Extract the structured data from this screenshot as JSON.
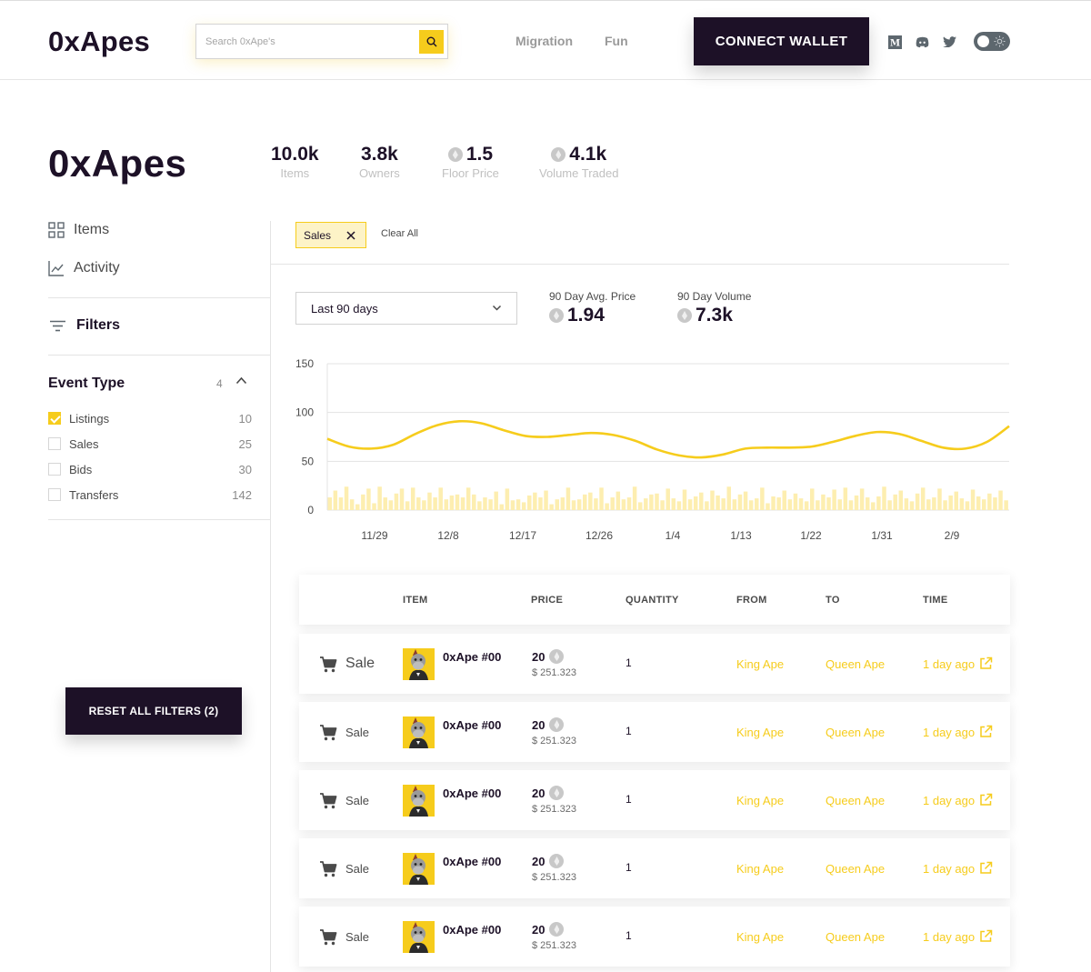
{
  "header": {
    "logo": "0xApes",
    "search_placeholder": "Search 0xApe's",
    "nav": [
      "Migration",
      "Fun"
    ],
    "connect_label": "CONNECT WALLET",
    "socials": [
      "medium-icon",
      "discord-icon",
      "twitter-icon"
    ]
  },
  "collection": {
    "title": "0xApes",
    "stats": [
      {
        "value": "10.0k",
        "label": "Items"
      },
      {
        "value": "3.8k",
        "label": "Owners"
      },
      {
        "value": "1.5",
        "label": "Floor Price"
      },
      {
        "value": "4.1k",
        "label": "Volume Traded"
      }
    ]
  },
  "sidebar": {
    "items": [
      {
        "label": "Items"
      },
      {
        "label": "Activity"
      }
    ],
    "filters_label": "Filters",
    "event_type": {
      "title": "Event Type",
      "count": "4",
      "options": [
        {
          "label": "Listings",
          "count": "10",
          "checked": true
        },
        {
          "label": "Sales",
          "count": "25",
          "checked": false
        },
        {
          "label": "Bids",
          "count": "30",
          "checked": false
        },
        {
          "label": "Transfers",
          "count": "142",
          "checked": false
        }
      ]
    },
    "reset_label": "RESET ALL FILTERS (2)"
  },
  "main": {
    "active_chip": "Sales",
    "clear_all": "Clear All",
    "range": "Last 90 days",
    "kpis": [
      {
        "label": "90 Day Avg. Price",
        "value": "1.94"
      },
      {
        "label": "90 Day Volume",
        "value": "7.3k"
      }
    ]
  },
  "chart_data": {
    "type": "line",
    "x_ticks": [
      "11/29",
      "12/8",
      "12/17",
      "12/26",
      "1/4",
      "1/13",
      "1/22",
      "1/31",
      "2/9"
    ],
    "ylim": [
      0,
      150
    ],
    "y_ticks": [
      "150",
      "100",
      "50",
      "0"
    ],
    "grid": true,
    "series": [
      {
        "type": "line",
        "color": "#f6cc1c",
        "values": [
          73,
          65,
          63,
          67,
          78,
          87,
          91,
          89,
          82,
          76,
          75,
          77,
          79,
          77,
          71,
          62,
          56,
          54,
          57,
          63,
          64,
          64,
          65,
          70,
          76,
          80,
          78,
          71,
          64,
          63,
          70,
          86
        ]
      },
      {
        "type": "bar",
        "color": "#fdeeb0",
        "values": [
          13,
          20,
          13,
          24,
          11,
          6,
          16,
          22,
          7,
          24,
          13,
          10,
          17,
          22,
          9,
          23,
          13,
          10,
          18,
          13,
          23,
          11,
          15,
          16,
          13,
          23,
          16,
          9,
          13,
          11,
          19,
          6,
          22,
          10,
          11,
          8,
          15,
          18,
          13,
          20,
          6,
          11,
          13,
          23,
          10,
          11,
          16,
          18,
          12,
          23,
          7,
          13,
          19,
          11,
          13,
          24,
          8,
          12,
          16,
          17,
          10,
          22,
          12,
          9,
          21,
          11,
          14,
          18,
          9,
          20,
          15,
          12,
          24,
          11,
          16,
          19,
          10,
          12,
          23,
          7,
          14,
          13,
          20,
          11,
          17,
          12,
          9,
          22,
          10,
          16,
          13,
          21,
          11,
          23,
          10,
          15,
          22,
          13,
          8,
          14,
          24,
          10,
          16,
          20,
          12,
          9,
          17,
          23,
          11,
          13,
          22,
          10,
          15,
          19,
          12,
          9,
          21,
          14,
          11,
          17,
          13,
          20,
          10
        ]
      }
    ]
  },
  "table": {
    "headers": [
      "ITEM",
      "PRICE",
      "QUANTITY",
      "FROM",
      "TO",
      "TIME"
    ],
    "rows": [
      {
        "event": "Sale",
        "item": "0xApe #00",
        "price": "20",
        "usd": "$ 251.323",
        "qty": "1",
        "from": "King Ape",
        "to": "Queen Ape",
        "time": "1 day ago"
      },
      {
        "event": "Sale",
        "item": "0xApe #00",
        "price": "20",
        "usd": "$ 251.323",
        "qty": "1",
        "from": "King Ape",
        "to": "Queen Ape",
        "time": "1 day ago"
      },
      {
        "event": "Sale",
        "item": "0xApe #00",
        "price": "20",
        "usd": "$ 251.323",
        "qty": "1",
        "from": "King Ape",
        "to": "Queen Ape",
        "time": "1 day ago"
      },
      {
        "event": "Sale",
        "item": "0xApe #00",
        "price": "20",
        "usd": "$ 251.323",
        "qty": "1",
        "from": "King Ape",
        "to": "Queen Ape",
        "time": "1 day ago"
      },
      {
        "event": "Sale",
        "item": "0xApe #00",
        "price": "20",
        "usd": "$ 251.323",
        "qty": "1",
        "from": "King Ape",
        "to": "Queen Ape",
        "time": "1 day ago"
      }
    ]
  },
  "colors": {
    "accent": "#f6cc1c",
    "dark": "#1d1127",
    "muted": "#9a9a9a"
  }
}
